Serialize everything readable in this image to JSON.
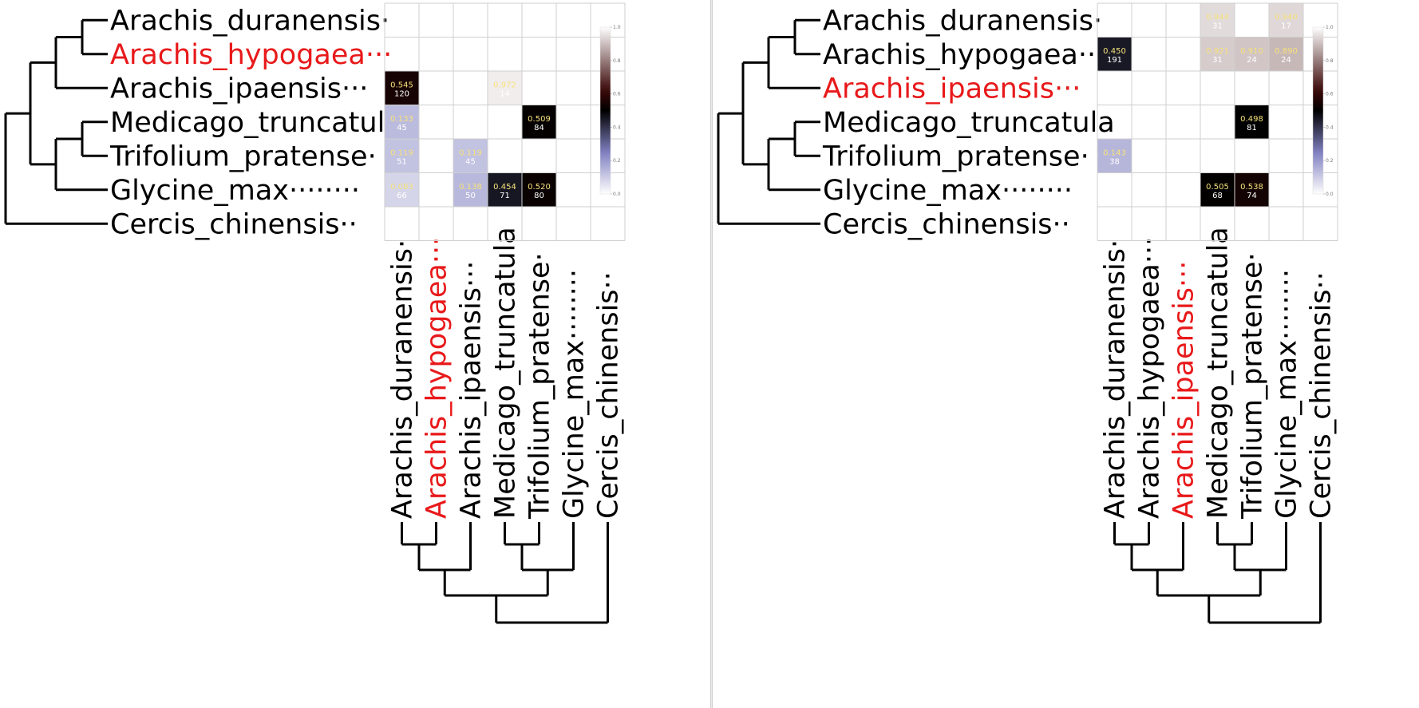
{
  "taxa": [
    "Arachis_duranensis·",
    "Arachis_hypogaea···",
    "Arachis_ipaensis···",
    "Medicago_truncatula",
    "Trifolium_pratense·",
    "Glycine_max········",
    "Cercis_chinensis··"
  ],
  "colorbar_ticks": [
    "0.0",
    "0.2",
    "0.4",
    "0.6",
    "0.8",
    "1.0"
  ],
  "colors": {
    "highlight": "#e8191a",
    "cmap_low": "#ffffff",
    "cmap_mid_low": "#7f7fc0",
    "cmap_mid": "#000000",
    "cmap_high": "#ffffff",
    "grid": "#cfcfcf"
  },
  "chart_data": [
    {
      "type": "heatmap",
      "highlight_taxon": "Arachis_hypogaea",
      "rows": [
        "Arachis_duranensis",
        "Arachis_hypogaea",
        "Arachis_ipaensis",
        "Medicago_truncatula",
        "Trifolium_pratense",
        "Glycine_max",
        "Cercis_chinensis"
      ],
      "cols": [
        "Arachis_duranensis",
        "Arachis_hypogaea",
        "Arachis_ipaensis",
        "Medicago_truncatula",
        "Trifolium_pratense",
        "Glycine_max",
        "Cercis_chinensis"
      ],
      "colorbar_range": [
        0,
        1
      ],
      "cells": [
        {
          "row": 2,
          "col": 0,
          "value": "0.545",
          "count": "120"
        },
        {
          "row": 2,
          "col": 3,
          "value": "0.972",
          "count": "14"
        },
        {
          "row": 3,
          "col": 0,
          "value": "0.133",
          "count": "45"
        },
        {
          "row": 3,
          "col": 4,
          "value": "0.509",
          "count": "84"
        },
        {
          "row": 4,
          "col": 0,
          "value": "0.119",
          "count": "51"
        },
        {
          "row": 4,
          "col": 2,
          "value": "0.119",
          "count": "45"
        },
        {
          "row": 5,
          "col": 0,
          "value": "0.083",
          "count": "66"
        },
        {
          "row": 5,
          "col": 2,
          "value": "0.138",
          "count": "50"
        },
        {
          "row": 5,
          "col": 3,
          "value": "0.454",
          "count": "71"
        },
        {
          "row": 5,
          "col": 4,
          "value": "0.520",
          "count": "80"
        }
      ]
    },
    {
      "type": "heatmap",
      "highlight_taxon": "Arachis_ipaensis",
      "rows": [
        "Arachis_duranensis",
        "Arachis_hypogaea",
        "Arachis_ipaensis",
        "Medicago_truncatula",
        "Trifolium_pratense",
        "Glycine_max",
        "Cercis_chinensis"
      ],
      "cols": [
        "Arachis_duranensis",
        "Arachis_hypogaea",
        "Arachis_ipaensis",
        "Medicago_truncatula",
        "Trifolium_pratense",
        "Glycine_max",
        "Cercis_chinensis"
      ],
      "colorbar_range": [
        0,
        1
      ],
      "cells": [
        {
          "row": 0,
          "col": 3,
          "value": "0.944",
          "count": "31"
        },
        {
          "row": 0,
          "col": 5,
          "value": "0.940",
          "count": "17"
        },
        {
          "row": 1,
          "col": 0,
          "value": "0.450",
          "count": "191"
        },
        {
          "row": 1,
          "col": 3,
          "value": "0.921",
          "count": "31"
        },
        {
          "row": 1,
          "col": 4,
          "value": "0.910",
          "count": "24"
        },
        {
          "row": 1,
          "col": 5,
          "value": "0.890",
          "count": "24"
        },
        {
          "row": 3,
          "col": 4,
          "value": "0.498",
          "count": "81"
        },
        {
          "row": 4,
          "col": 0,
          "value": "0.143",
          "count": "38"
        },
        {
          "row": 5,
          "col": 3,
          "value": "0.505",
          "count": "68"
        },
        {
          "row": 5,
          "col": 4,
          "value": "0.538",
          "count": "74"
        }
      ]
    }
  ]
}
